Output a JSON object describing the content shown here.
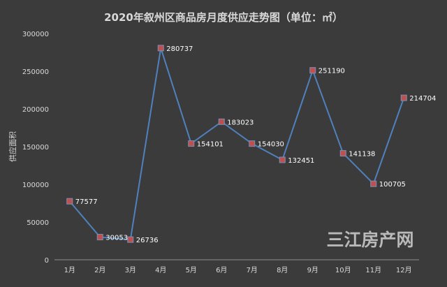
{
  "chart_data": {
    "type": "line",
    "title": "2020年叙州区商品房月度供应走势图（单位：㎡）",
    "ylabel": "供应面积",
    "xlabel": "",
    "categories": [
      "1月",
      "2月",
      "3月",
      "4月",
      "5月",
      "6月",
      "7月",
      "8月",
      "9月",
      "10月",
      "11月",
      "12月"
    ],
    "values": [
      77577,
      30053,
      26736,
      280737,
      154101,
      183023,
      154030,
      132451,
      251190,
      141138,
      100705,
      214704
    ],
    "data_labels": [
      "77577",
      "30053",
      "26736",
      "280737",
      "154101",
      "183023",
      "154030",
      "132451",
      "251190",
      "141138",
      "100705",
      "214704"
    ],
    "ylim": [
      0,
      300000
    ],
    "yticks": [
      "0",
      "50000",
      "100000",
      "150000",
      "200000",
      "250000",
      "300000"
    ],
    "grid": false,
    "legend": "none",
    "colors": {
      "line": "#4f81bd",
      "marker": "#c0504d",
      "background": "#3b3b3b",
      "text": "#d9d9d9"
    }
  },
  "watermark": "三江房产网"
}
